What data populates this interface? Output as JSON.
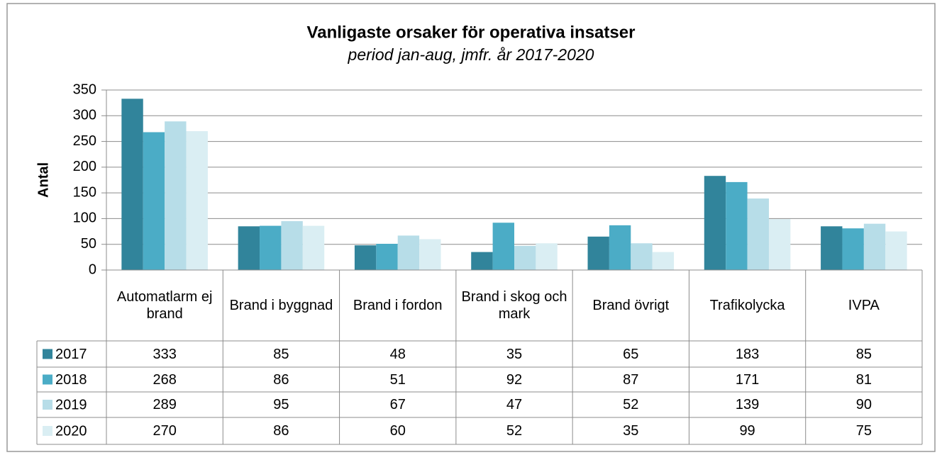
{
  "chart_data": {
    "type": "bar",
    "title": "Vanligaste orsaker för operativa insatser",
    "subtitle": "period jan-aug, jmfr. år 2017-2020",
    "y_label": "Antal",
    "categories": [
      "Automatlarm ej brand",
      "Brand i byggnad",
      "Brand i fordon",
      "Brand i skog och mark",
      "Brand övrigt",
      "Trafikolycka",
      "IVPA"
    ],
    "series": [
      {
        "name": "2017",
        "color": "#31849b",
        "values": [
          333,
          85,
          48,
          35,
          65,
          183,
          85
        ]
      },
      {
        "name": "2018",
        "color": "#4bacc6",
        "values": [
          268,
          86,
          51,
          92,
          87,
          171,
          81
        ]
      },
      {
        "name": "2019",
        "color": "#b7dde8",
        "values": [
          289,
          95,
          67,
          47,
          52,
          139,
          90
        ]
      },
      {
        "name": "2020",
        "color": "#daeef3",
        "values": [
          270,
          86,
          60,
          52,
          35,
          99,
          75
        ]
      }
    ],
    "ylim": [
      0,
      350
    ],
    "yticks": [
      0,
      50,
      100,
      150,
      200,
      250,
      300,
      350
    ],
    "grid": true
  }
}
